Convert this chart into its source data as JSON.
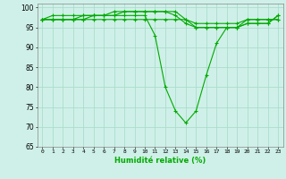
{
  "xlabel": "Humidité relative (%)",
  "xlim": [
    -0.5,
    23.5
  ],
  "ylim": [
    65,
    101
  ],
  "yticks": [
    65,
    70,
    75,
    80,
    85,
    90,
    95,
    100
  ],
  "xticks": [
    0,
    1,
    2,
    3,
    4,
    5,
    6,
    7,
    8,
    9,
    10,
    11,
    12,
    13,
    14,
    15,
    16,
    17,
    18,
    19,
    20,
    21,
    22,
    23
  ],
  "background_color": "#cff0e8",
  "grid_color": "#aaddcc",
  "line_color": "#00aa00",
  "marker": "+",
  "lines": [
    [
      97,
      97,
      97,
      97,
      97,
      97,
      97,
      97,
      97,
      97,
      97,
      97,
      97,
      97,
      97,
      96,
      96,
      96,
      96,
      96,
      97,
      97,
      97,
      97
    ],
    [
      97,
      98,
      98,
      98,
      98,
      98,
      98,
      98,
      98,
      98,
      98,
      93,
      80,
      74,
      71,
      74,
      83,
      91,
      95,
      95,
      97,
      97,
      97,
      97
    ],
    [
      97,
      97,
      97,
      97,
      97,
      98,
      98,
      98,
      99,
      99,
      99,
      99,
      99,
      98,
      96,
      95,
      95,
      95,
      95,
      95,
      96,
      96,
      96,
      98
    ],
    [
      97,
      97,
      97,
      97,
      98,
      98,
      98,
      99,
      99,
      99,
      99,
      99,
      99,
      99,
      97,
      95,
      95,
      95,
      95,
      95,
      96,
      96,
      96,
      98
    ]
  ]
}
